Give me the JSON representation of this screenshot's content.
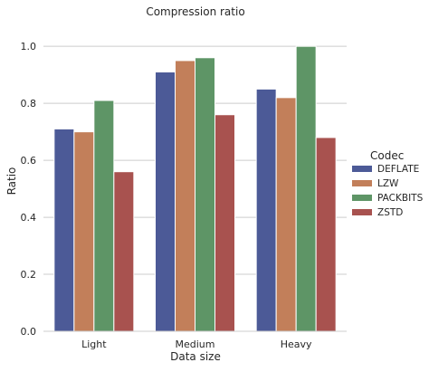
{
  "chart_data": {
    "type": "bar",
    "title": "Compression ratio",
    "xlabel": "Data size",
    "ylabel": "Ratio",
    "categories": [
      "Light",
      "Medium",
      "Heavy"
    ],
    "ylim": [
      0,
      1.08
    ],
    "yticks": [
      0.0,
      0.2,
      0.4,
      0.6,
      0.8,
      1.0
    ],
    "ytick_labels": [
      "0.0",
      "0.2",
      "0.4",
      "0.6",
      "0.8",
      "1.0"
    ],
    "grid": true,
    "legend": {
      "title": "Codec",
      "placement": "right"
    },
    "series": [
      {
        "name": "DEFLATE",
        "color": "#4c5a97",
        "values": [
          0.71,
          0.91,
          0.85
        ]
      },
      {
        "name": "LZW",
        "color": "#c27f5a",
        "values": [
          0.7,
          0.95,
          0.82
        ]
      },
      {
        "name": "PACKBITS",
        "color": "#5e9566",
        "values": [
          0.81,
          0.96,
          1.0
        ]
      },
      {
        "name": "ZSTD",
        "color": "#a8524f",
        "values": [
          0.56,
          0.76,
          0.68
        ]
      }
    ]
  }
}
